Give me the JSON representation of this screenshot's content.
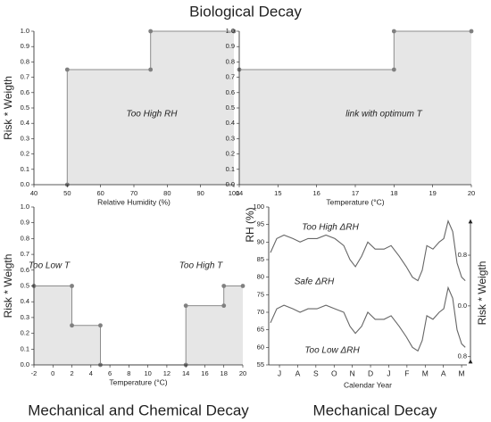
{
  "chart_data": [
    {
      "type": "area",
      "title": "Biological Decay",
      "x_label": "Relative Humidity (%)",
      "y_label": "Risk * Weigth",
      "x": [
        50,
        50,
        75,
        75,
        100
      ],
      "values": [
        0,
        0.75,
        0.75,
        1,
        1
      ],
      "color": "#8c8c8c",
      "fill_color": "#e6e6e6",
      "xlim": [
        40,
        100
      ],
      "xticks": [
        40,
        50,
        60,
        70,
        80,
        90,
        100
      ],
      "ylim": [
        0,
        1
      ],
      "yticks": [
        {
          "value": 0,
          "label": "0.0"
        },
        0.1,
        0.2,
        0.3,
        0.4,
        0.5,
        0.6,
        0.7,
        0.8,
        0.9,
        {
          "value": 1,
          "label": "1.0"
        }
      ],
      "annotations": [
        "Too High RH"
      ]
    },
    {
      "type": "area",
      "x_label": "Temperature (°C)",
      "x": [
        14,
        18,
        18,
        20
      ],
      "values": [
        0.75,
        0.75,
        1,
        1
      ],
      "color": "#8c8c8c",
      "fill_color": "#e6e6e6",
      "xlim": [
        14,
        20
      ],
      "xticks": [
        14,
        15,
        16,
        17,
        18,
        19,
        20
      ],
      "ylim": [
        0,
        1
      ],
      "yticks": [
        {
          "value": 0,
          "label": "0.0"
        },
        0.1,
        0.2,
        0.3,
        0.4,
        0.5,
        0.6,
        0.7,
        0.8,
        0.9,
        {
          "value": 1,
          "label": "1.0"
        }
      ],
      "annotations": [
        "link with optimum T"
      ]
    },
    {
      "type": "area",
      "title": "Mechanical and Chemical Decay",
      "x_label": "Temperature (°C)",
      "y_label": "Risk * Weigth",
      "x": [
        -2,
        2,
        2,
        5,
        5,
        14,
        14,
        18,
        18,
        20
      ],
      "values": [
        0.5,
        0.5,
        0.25,
        0.25,
        0,
        0,
        0.375,
        0.375,
        0.5,
        0.5
      ],
      "color": "#8c8c8c",
      "fill_color": "#e6e6e6",
      "xlim": [
        -2,
        20
      ],
      "xticks": [
        -2,
        0,
        2,
        4,
        6,
        8,
        10,
        12,
        14,
        16,
        18,
        20
      ],
      "ylim": [
        0,
        1
      ],
      "yticks": [
        {
          "value": 0,
          "label": "0.0"
        },
        0.1,
        0.2,
        0.3,
        0.4,
        0.5,
        0.6,
        0.7,
        0.8,
        0.9,
        {
          "value": 1,
          "label": "1.0"
        }
      ],
      "annotations": [
        "Too Low T",
        "Too High T"
      ]
    },
    {
      "type": "line",
      "title": "Mechanical Decay",
      "x_label": "Calendar Year",
      "y_label": "RH (%)",
      "y2_label": "Risk * Weigth",
      "x": [
        -0.49,
        -0.15,
        0.25,
        0.74,
        1.13,
        1.57,
        2.06,
        2.55,
        3.04,
        3.53,
        3.87,
        4.17,
        4.51,
        4.85,
        5.25,
        5.74,
        6.13,
        6.57,
        6.96,
        7.3,
        7.6,
        7.84,
        8.09,
        8.43,
        8.77,
        9.02,
        9.26,
        9.51,
        9.75,
        10,
        10.2
      ],
      "series": [
        {
          "color": "#666666",
          "values": [
            87,
            91,
            92,
            91,
            90,
            91,
            91,
            92,
            91,
            89,
            85,
            83,
            86,
            90,
            88,
            88,
            89,
            86,
            83,
            80,
            79,
            82,
            89,
            88,
            90,
            91,
            96,
            93,
            84,
            80,
            79
          ]
        },
        {
          "color": "#666666",
          "values": [
            67,
            71,
            72,
            71,
            70,
            71,
            71,
            72,
            71,
            70,
            66,
            64,
            66,
            70,
            68,
            68,
            69,
            66,
            63,
            60,
            59,
            62,
            69,
            68,
            70,
            71,
            77,
            74,
            65,
            61,
            60
          ]
        }
      ],
      "xlim": [
        -0.59,
        10.29
      ],
      "xticks": [
        {
          "value": 0,
          "label": "J"
        },
        {
          "value": 1,
          "label": "A"
        },
        {
          "value": 2,
          "label": "S"
        },
        {
          "value": 3,
          "label": "O"
        },
        {
          "value": 4,
          "label": "N"
        },
        {
          "value": 5,
          "label": "D"
        },
        {
          "value": 6,
          "label": "J"
        },
        {
          "value": 7,
          "label": "F"
        },
        {
          "value": 8,
          "label": "M"
        },
        {
          "value": 9,
          "label": "A"
        },
        {
          "value": 10,
          "label": "M"
        }
      ],
      "ylim": [
        55,
        100
      ],
      "yticks": [
        55,
        60,
        65,
        70,
        75,
        80,
        85,
        90,
        95,
        100
      ],
      "y2lim": [
        -0.93,
        1.56
      ],
      "y2ticks": [
        {
          "value": 0.8,
          "label": "0.8"
        },
        {
          "value": 0,
          "label": "0.0"
        },
        {
          "value": -0.8,
          "label": "0.8"
        }
      ],
      "annotations": [
        "Too High ΔRH",
        "Safe ΔRH",
        "Too Low ΔRH"
      ]
    }
  ]
}
